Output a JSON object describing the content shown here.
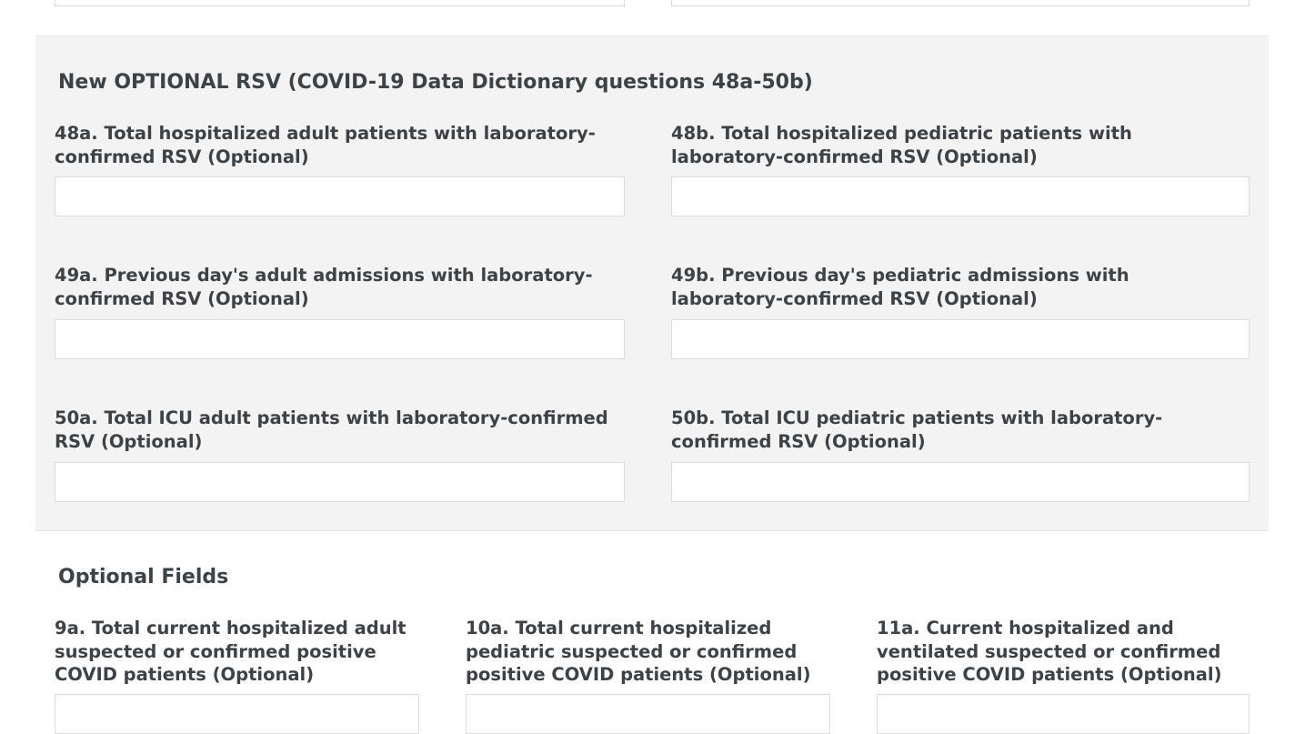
{
  "rsv_section": {
    "title": "New OPTIONAL RSV (COVID-19 Data Dictionary questions 48a-50b)",
    "fields": [
      {
        "label": "48a. Total hospitalized adult patients with laboratory-confirmed RSV (Optional)",
        "value": ""
      },
      {
        "label": "48b. Total hospitalized pediatric patients with laboratory-confirmed RSV (Optional)",
        "value": ""
      },
      {
        "label": "49a. Previous day's adult admissions with laboratory-confirmed RSV (Optional)",
        "value": ""
      },
      {
        "label": "49b. Previous day's pediatric admissions with laboratory-confirmed RSV (Optional)",
        "value": ""
      },
      {
        "label": "50a. Total ICU adult patients with laboratory-confirmed RSV (Optional)",
        "value": ""
      },
      {
        "label": "50b. Total ICU pediatric patients with laboratory-confirmed RSV (Optional)",
        "value": ""
      }
    ]
  },
  "optional_section": {
    "title": "Optional Fields",
    "fields": [
      {
        "label": "9a. Total current hospitalized adult suspected or confirmed positive COVID patients (Optional)",
        "value": ""
      },
      {
        "label": "10a. Total current hospitalized pediatric suspected or confirmed positive COVID patients (Optional)",
        "value": ""
      },
      {
        "label": "11a. Current hospitalized and ventilated suspected or confirmed positive COVID patients (Optional)",
        "value": ""
      }
    ]
  }
}
